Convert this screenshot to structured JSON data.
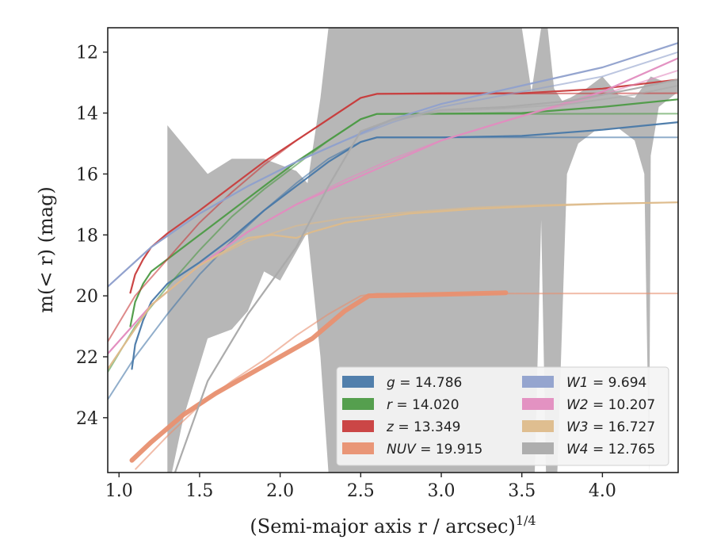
{
  "chart_data": {
    "type": "line",
    "xlabel_main": "(Semi-major axis r / arcsec)",
    "xlabel_sup": "1/4",
    "ylabel": "m(< r) (mag)",
    "xlim": [
      0.93,
      4.47
    ],
    "ylim": [
      25.8,
      11.2
    ],
    "y_inverted": true,
    "grid": false,
    "legend_position": "lower-right",
    "x_ticks": [
      1.0,
      1.5,
      2.0,
      2.5,
      3.0,
      3.5,
      4.0
    ],
    "x_tick_labels": [
      "1.0",
      "1.5",
      "2.0",
      "2.5",
      "3.0",
      "3.5",
      "4.0"
    ],
    "y_ticks": [
      12,
      14,
      16,
      18,
      20,
      22,
      24
    ],
    "y_tick_labels": [
      "12",
      "14",
      "16",
      "18",
      "20",
      "22",
      "24"
    ],
    "series": [
      {
        "name": "g = 14.786",
        "legend_label": "g = 14.786",
        "color": "#4878a8",
        "measured": [
          [
            1.08,
            22.4
          ],
          [
            1.1,
            21.6
          ],
          [
            1.15,
            20.8
          ],
          [
            1.2,
            20.2
          ],
          [
            1.3,
            19.6
          ],
          [
            1.5,
            18.9
          ],
          [
            1.7,
            18.1
          ],
          [
            1.9,
            17.2
          ],
          [
            2.1,
            16.4
          ],
          [
            2.3,
            15.6
          ],
          [
            2.5,
            14.95
          ],
          [
            2.6,
            14.8
          ],
          [
            3.0,
            14.8
          ],
          [
            3.5,
            14.75
          ],
          [
            4.0,
            14.55
          ],
          [
            4.47,
            14.3
          ]
        ],
        "model": [
          [
            0.93,
            23.4
          ],
          [
            1.1,
            22.0
          ],
          [
            1.3,
            20.6
          ],
          [
            1.5,
            19.3
          ],
          [
            1.7,
            18.2
          ],
          [
            1.9,
            17.2
          ],
          [
            2.1,
            16.3
          ],
          [
            2.3,
            15.5
          ],
          [
            2.5,
            14.95
          ],
          [
            2.6,
            14.8
          ],
          [
            4.47,
            14.8
          ]
        ]
      },
      {
        "name": "r = 14.020",
        "legend_label": "r = 14.020",
        "color": "#4c9a45",
        "measured": [
          [
            1.07,
            21.0
          ],
          [
            1.1,
            20.2
          ],
          [
            1.15,
            19.6
          ],
          [
            1.2,
            19.2
          ],
          [
            1.3,
            18.8
          ],
          [
            1.5,
            18.0
          ],
          [
            1.7,
            17.2
          ],
          [
            1.9,
            16.4
          ],
          [
            2.1,
            15.6
          ],
          [
            2.3,
            14.9
          ],
          [
            2.5,
            14.2
          ],
          [
            2.6,
            14.03
          ],
          [
            3.0,
            14.02
          ],
          [
            3.5,
            14.0
          ],
          [
            4.0,
            13.8
          ],
          [
            4.47,
            13.55
          ]
        ],
        "model": [
          [
            0.93,
            22.5
          ],
          [
            1.1,
            21.0
          ],
          [
            1.3,
            19.7
          ],
          [
            1.5,
            18.5
          ],
          [
            1.7,
            17.4
          ],
          [
            1.9,
            16.5
          ],
          [
            2.1,
            15.7
          ],
          [
            2.3,
            14.9
          ],
          [
            2.5,
            14.2
          ],
          [
            2.6,
            14.03
          ],
          [
            4.47,
            14.02
          ]
        ]
      },
      {
        "name": "z = 13.349",
        "legend_label": "z = 13.349",
        "color": "#c83c3c",
        "measured": [
          [
            1.07,
            19.9
          ],
          [
            1.1,
            19.3
          ],
          [
            1.15,
            18.8
          ],
          [
            1.2,
            18.4
          ],
          [
            1.3,
            17.95
          ],
          [
            1.5,
            17.2
          ],
          [
            1.7,
            16.4
          ],
          [
            1.9,
            15.6
          ],
          [
            2.1,
            14.9
          ],
          [
            2.3,
            14.2
          ],
          [
            2.5,
            13.5
          ],
          [
            2.6,
            13.37
          ],
          [
            3.0,
            13.35
          ],
          [
            3.5,
            13.35
          ],
          [
            4.0,
            13.2
          ],
          [
            4.47,
            12.9
          ]
        ],
        "model": [
          [
            0.93,
            21.5
          ],
          [
            1.1,
            20.0
          ],
          [
            1.3,
            18.8
          ],
          [
            1.5,
            17.6
          ],
          [
            1.7,
            16.6
          ],
          [
            1.9,
            15.7
          ],
          [
            2.1,
            14.9
          ],
          [
            2.3,
            14.2
          ],
          [
            2.5,
            13.5
          ],
          [
            2.6,
            13.37
          ],
          [
            4.47,
            13.35
          ]
        ]
      },
      {
        "name": "NUV = 19.915",
        "legend_label": "NUV = 19.915",
        "color": "#e89070",
        "measured": [
          [
            1.08,
            25.4
          ],
          [
            1.2,
            24.8
          ],
          [
            1.4,
            23.9
          ],
          [
            1.6,
            23.2
          ],
          [
            1.8,
            22.6
          ],
          [
            2.0,
            22.0
          ],
          [
            2.2,
            21.4
          ],
          [
            2.4,
            20.5
          ],
          [
            2.55,
            20.0
          ],
          [
            3.0,
            19.95
          ],
          [
            3.4,
            19.9
          ]
        ],
        "model": [
          [
            1.1,
            25.7
          ],
          [
            1.3,
            24.6
          ],
          [
            1.5,
            23.6
          ],
          [
            1.7,
            22.8
          ],
          [
            1.9,
            22.1
          ],
          [
            2.1,
            21.3
          ],
          [
            2.3,
            20.6
          ],
          [
            2.5,
            20.0
          ],
          [
            2.6,
            19.93
          ],
          [
            4.47,
            19.92
          ]
        ]
      },
      {
        "name": "W1 = 9.694",
        "legend_label": "W1 = 9.694",
        "color": "#8fa0cc",
        "measured": [
          [
            0.93,
            19.7
          ],
          [
            1.2,
            18.4
          ],
          [
            1.5,
            17.3
          ],
          [
            1.8,
            16.4
          ],
          [
            2.1,
            15.6
          ],
          [
            2.4,
            14.9
          ],
          [
            2.7,
            14.2
          ],
          [
            3.0,
            13.7
          ],
          [
            3.5,
            13.1
          ],
          [
            4.0,
            12.5
          ],
          [
            4.47,
            11.7
          ]
        ],
        "model": [
          [
            0.93,
            19.7
          ],
          [
            1.2,
            18.4
          ],
          [
            1.5,
            17.3
          ],
          [
            1.8,
            16.4
          ],
          [
            2.1,
            15.6
          ],
          [
            2.4,
            14.9
          ],
          [
            2.7,
            14.3
          ],
          [
            3.0,
            13.8
          ],
          [
            3.5,
            13.3
          ],
          [
            4.0,
            12.8
          ],
          [
            4.47,
            12.0
          ]
        ]
      },
      {
        "name": "W2 = 10.207",
        "legend_label": "W2 = 10.207",
        "color": "#e28cbf",
        "measured": [
          [
            0.93,
            21.9
          ],
          [
            1.2,
            20.3
          ],
          [
            1.5,
            19.0
          ],
          [
            1.8,
            17.9
          ],
          [
            2.1,
            17.0
          ],
          [
            2.4,
            16.3
          ],
          [
            2.7,
            15.6
          ],
          [
            3.0,
            14.9
          ],
          [
            3.5,
            14.1
          ],
          [
            4.0,
            13.3
          ],
          [
            4.47,
            12.2
          ]
        ],
        "model": [
          [
            0.93,
            21.9
          ],
          [
            1.2,
            20.3
          ],
          [
            1.5,
            19.0
          ],
          [
            1.8,
            17.9
          ],
          [
            2.1,
            17.0
          ],
          [
            2.4,
            16.2
          ],
          [
            2.7,
            15.5
          ],
          [
            3.0,
            14.9
          ],
          [
            3.5,
            14.1
          ],
          [
            4.0,
            13.4
          ],
          [
            4.47,
            12.6
          ]
        ]
      },
      {
        "name": "W3 = 16.727",
        "legend_label": "W3 = 16.727",
        "color": "#ddbb8a",
        "measured": [
          [
            0.93,
            22.4
          ],
          [
            1.2,
            20.3
          ],
          [
            1.5,
            19.0
          ],
          [
            1.8,
            18.1
          ],
          [
            1.95,
            18.0
          ],
          [
            2.1,
            18.1
          ],
          [
            2.2,
            17.9
          ],
          [
            2.4,
            17.6
          ],
          [
            2.8,
            17.3
          ],
          [
            3.2,
            17.15
          ],
          [
            3.6,
            17.05
          ],
          [
            4.0,
            16.98
          ],
          [
            4.47,
            16.93
          ]
        ],
        "model": [
          [
            0.93,
            22.4
          ],
          [
            1.2,
            20.3
          ],
          [
            1.5,
            19.0
          ],
          [
            1.8,
            18.2
          ],
          [
            2.1,
            17.7
          ],
          [
            2.4,
            17.45
          ],
          [
            2.8,
            17.25
          ],
          [
            3.2,
            17.1
          ],
          [
            3.6,
            17.02
          ],
          [
            4.0,
            16.97
          ],
          [
            4.47,
            16.93
          ]
        ]
      },
      {
        "name": "W4 = 12.765",
        "legend_label": "W4 = 12.765",
        "color": "#aaaaaa",
        "measured": [
          [
            1.3,
            26.5
          ],
          [
            1.55,
            22.8
          ],
          [
            1.8,
            20.6
          ],
          [
            2.1,
            18.4
          ],
          [
            2.3,
            16.4
          ],
          [
            2.5,
            14.6
          ],
          [
            2.7,
            14.2
          ],
          [
            3.0,
            13.9
          ],
          [
            3.4,
            13.8
          ],
          [
            3.8,
            13.6
          ],
          [
            4.2,
            13.2
          ],
          [
            4.47,
            12.9
          ]
        ],
        "model": [
          [
            1.3,
            26.5
          ],
          [
            1.55,
            22.8
          ],
          [
            1.8,
            20.6
          ],
          [
            2.1,
            18.4
          ],
          [
            2.3,
            16.4
          ],
          [
            2.5,
            14.6
          ],
          [
            2.7,
            14.25
          ],
          [
            3.0,
            13.95
          ],
          [
            3.4,
            13.85
          ],
          [
            3.8,
            13.7
          ],
          [
            4.2,
            13.4
          ],
          [
            4.47,
            13.1
          ]
        ]
      }
    ],
    "uncertainty_band": {
      "series": "W4 = 12.765",
      "color": "#aaaaaa",
      "upper": [
        [
          1.3,
          14.4
        ],
        [
          1.55,
          16.0
        ],
        [
          1.7,
          15.5
        ],
        [
          1.9,
          15.5
        ],
        [
          2.1,
          15.9
        ],
        [
          2.17,
          16.3
        ],
        [
          2.25,
          13.5
        ],
        [
          2.3,
          11.2
        ],
        [
          2.6,
          11.2
        ],
        [
          3.0,
          11.2
        ],
        [
          3.5,
          11.2
        ],
        [
          3.56,
          13.3
        ],
        [
          3.62,
          11.2
        ],
        [
          3.66,
          11.2
        ],
        [
          3.7,
          13.2
        ],
        [
          3.75,
          13.6
        ],
        [
          3.8,
          13.5
        ],
        [
          3.9,
          13.2
        ],
        [
          4.0,
          12.8
        ],
        [
          4.1,
          13.4
        ],
        [
          4.2,
          13.5
        ],
        [
          4.3,
          12.8
        ],
        [
          4.4,
          13.0
        ],
        [
          4.47,
          12.9
        ]
      ],
      "lower": [
        [
          4.47,
          13.3
        ],
        [
          4.35,
          13.8
        ],
        [
          4.3,
          15.4
        ],
        [
          4.29,
          25.8
        ],
        [
          4.26,
          16.0
        ],
        [
          4.2,
          14.9
        ],
        [
          4.1,
          14.5
        ],
        [
          3.95,
          14.6
        ],
        [
          3.85,
          15.0
        ],
        [
          3.78,
          16.0
        ],
        [
          3.72,
          25.8
        ],
        [
          3.65,
          25.8
        ],
        [
          3.62,
          17.5
        ],
        [
          3.58,
          25.8
        ],
        [
          3.3,
          25.8
        ],
        [
          3.0,
          25.8
        ],
        [
          2.5,
          25.8
        ],
        [
          2.3,
          25.8
        ],
        [
          2.25,
          22.0
        ],
        [
          2.17,
          17.9
        ],
        [
          2.0,
          19.5
        ],
        [
          1.9,
          19.2
        ],
        [
          1.8,
          20.5
        ],
        [
          1.7,
          21.1
        ],
        [
          1.55,
          21.4
        ],
        [
          1.4,
          24.0
        ],
        [
          1.3,
          26.5
        ]
      ]
    }
  }
}
